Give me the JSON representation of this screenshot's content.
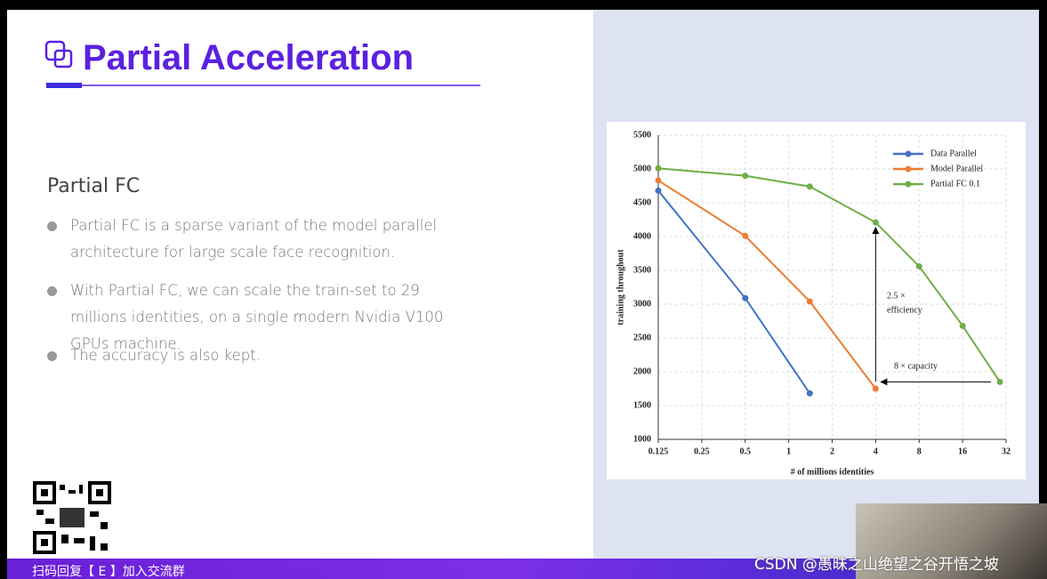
{
  "slide": {
    "title": "Partial Acceleration",
    "heading": "Partial FC",
    "bullets": [
      "Partial FC is a sparse variant of the model parallel architecture for large scale  face recognition.",
      "With Partial FC, we can scale the train-set to 29 millions identities, on a single modern Nvidia V100 GPUs machine.",
      "The accuracy is also kept."
    ],
    "banner": "扫码回复【 E 】加入交流群",
    "watermark": "CSDN @愚昧之山绝望之谷开悟之坡"
  },
  "chart_data": {
    "type": "line",
    "xscale": "log",
    "xlabel": "# of millions identities",
    "ylabel": "training throughout",
    "x": [
      0.125,
      0.5,
      1.4,
      4,
      8,
      16,
      29
    ],
    "series": [
      {
        "name": "Data Parallel",
        "color": "#4472c4",
        "values": [
          4680,
          3090,
          1680,
          null,
          null,
          null,
          null
        ]
      },
      {
        "name": "Model Parallel",
        "color": "#ed7d31",
        "values": [
          4830,
          4010,
          3040,
          1750,
          null,
          null,
          null
        ]
      },
      {
        "name": "Partial FC 0.1",
        "color": "#70ad47",
        "values": [
          5010,
          4900,
          4740,
          4210,
          3560,
          2680,
          1850
        ]
      }
    ],
    "xlim": [
      0.125,
      32
    ],
    "xticks": [
      0.125,
      0.25,
      0.5,
      1,
      2,
      4,
      8,
      16,
      32
    ],
    "ylim": [
      1000,
      5500
    ],
    "yticks": [
      1000,
      1500,
      2000,
      2500,
      3000,
      3500,
      4000,
      4500,
      5000,
      5500
    ],
    "grid": true,
    "legend": "upper right",
    "annotations": [
      "2.5 ×",
      "efficiency",
      "8 × capacity"
    ]
  }
}
